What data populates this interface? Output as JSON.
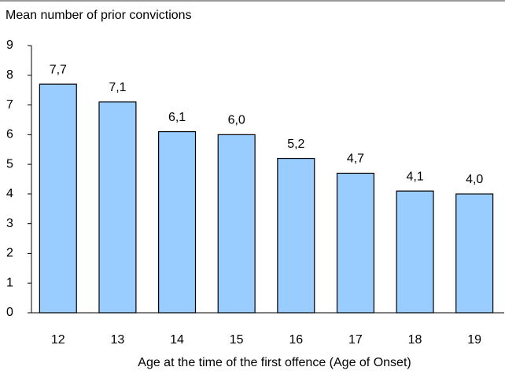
{
  "chart_data": {
    "type": "bar",
    "y_label": "Mean number of prior convictions",
    "x_label": "Age at the time of the first offence (Age of Onset)",
    "categories": [
      "12",
      "13",
      "14",
      "15",
      "16",
      "17",
      "18",
      "19"
    ],
    "values": [
      7.7,
      7.1,
      6.1,
      6.0,
      5.2,
      4.7,
      4.1,
      4.0
    ],
    "value_labels": [
      "7,7",
      "7,1",
      "6,1",
      "6,0",
      "5,2",
      "4,7",
      "4,1",
      "4,0"
    ],
    "color": "#99ccff",
    "ylim": [
      0,
      9
    ],
    "yticks": [
      0,
      1,
      2,
      3,
      4,
      5,
      6,
      7,
      8,
      9
    ],
    "grid": false
  }
}
